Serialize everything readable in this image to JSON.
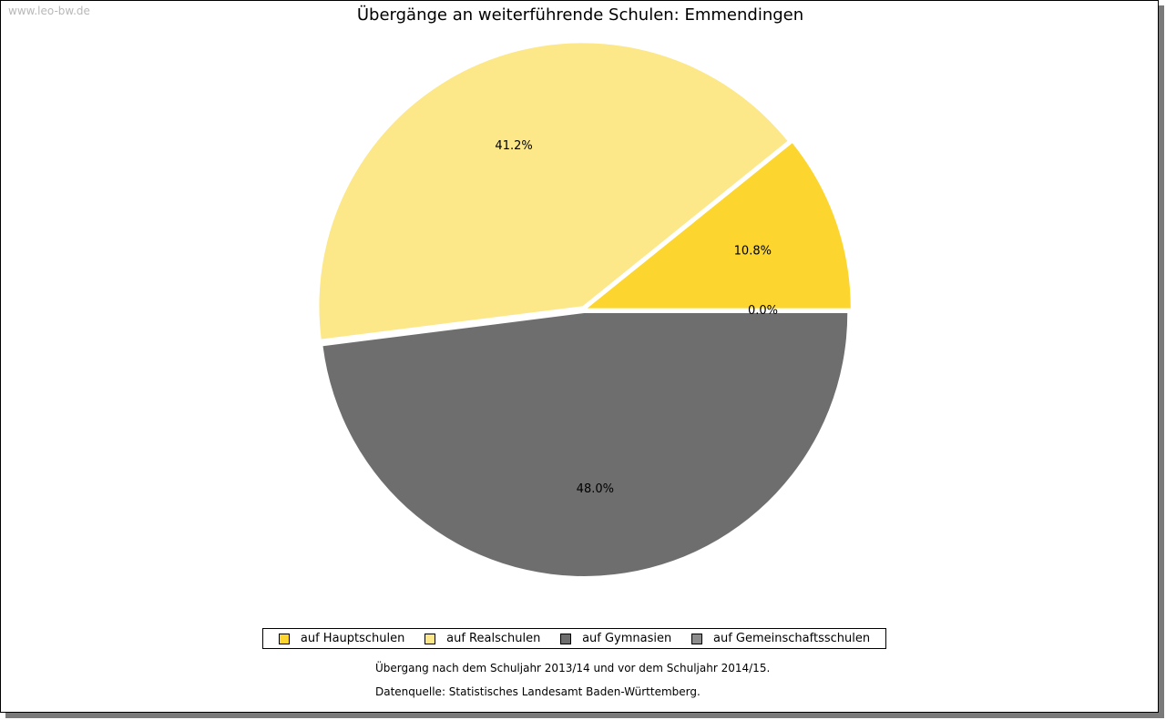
{
  "watermark": "www.leo-bw.de",
  "chart_data": {
    "type": "pie",
    "title": "Übergänge an weiterführende Schulen: Emmendingen",
    "slices": [
      {
        "name": "auf Hauptschulen",
        "value": 10.8,
        "label": "10.8%",
        "color": "#fcd62f"
      },
      {
        "name": "auf Realschulen",
        "value": 41.2,
        "label": "41.2%",
        "color": "#fce789"
      },
      {
        "name": "auf Gymnasien",
        "value": 48.0,
        "label": "48.0%",
        "color": "#6e6e6e"
      },
      {
        "name": "auf Gemeinschaftsschulen",
        "value": 0.0,
        "label": "0.0%",
        "color": "#8c8c8c"
      }
    ],
    "legend_position": "bottom",
    "notes": [
      "Übergang nach dem Schuljahr 2013/14 und vor dem Schuljahr 2014/15.",
      "Datenquelle: Statistisches Landesamt Baden-Württemberg."
    ]
  }
}
